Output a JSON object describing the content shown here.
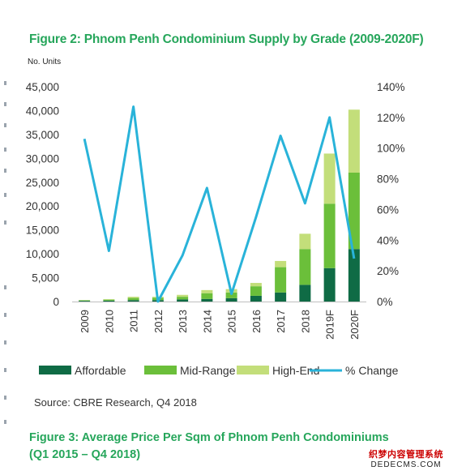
{
  "figure_title": "Figure 2: Phnom Penh Condominium Supply by Grade (2009-2020F)",
  "next_figure_title": "Figure 3: Average Price Per Sqm of Phnom Penh Condominiums (Q1 2015 – Q4 2018)",
  "source": "Source: CBRE Research, Q4 2018",
  "watermark": {
    "line1": "织梦内容管理系统",
    "line2": "DEDECMS.COM"
  },
  "colors": {
    "title": "#26a65b",
    "affordable": "#0f6b45",
    "mid_range": "#6bbf3a",
    "high_end": "#c3de7a",
    "pct_change": "#29b3d9"
  },
  "chart_data": {
    "type": "bar",
    "stacked": true,
    "title": "Figure 2: Phnom Penh Condominium Supply by Grade (2009-2020F)",
    "ylabel": "No. Units",
    "ylim": [
      0,
      45000
    ],
    "y_ticks": [
      0,
      5000,
      10000,
      15000,
      20000,
      25000,
      30000,
      35000,
      40000,
      45000
    ],
    "y_tick_labels": [
      "0",
      "5,000",
      "10,000",
      "15,000",
      "20,000",
      "25,000",
      "30,000",
      "35,000",
      "40,000",
      "45,000"
    ],
    "y2lim": [
      0,
      140
    ],
    "y2_ticks": [
      0,
      20,
      40,
      60,
      80,
      100,
      120,
      140
    ],
    "y2_tick_labels": [
      "0%",
      "20%",
      "40%",
      "60%",
      "80%",
      "100%",
      "120%",
      "140%"
    ],
    "categories": [
      "2009",
      "2010",
      "2011",
      "2012",
      "2013",
      "2014",
      "2015",
      "2016",
      "2017",
      "2018",
      "2019F",
      "2020F"
    ],
    "series": [
      {
        "name": "Affordable",
        "type": "bar",
        "axis": "left",
        "color": "#0f6b45",
        "values": [
          150,
          200,
          300,
          300,
          450,
          550,
          700,
          1200,
          1900,
          3500,
          7000,
          11000
        ]
      },
      {
        "name": "Mid-Range",
        "type": "bar",
        "axis": "left",
        "color": "#6bbf3a",
        "values": [
          100,
          200,
          450,
          500,
          550,
          1200,
          1200,
          2000,
          5300,
          7500,
          13500,
          16000
        ]
      },
      {
        "name": "High-End",
        "type": "bar",
        "axis": "left",
        "color": "#c3de7a",
        "values": [
          50,
          100,
          250,
          200,
          400,
          650,
          700,
          700,
          1300,
          3200,
          10500,
          13200
        ]
      },
      {
        "name": "% Change",
        "type": "line",
        "axis": "right",
        "color": "#29b3d9",
        "values": [
          106,
          33,
          127,
          0,
          30,
          74,
          5,
          55,
          108,
          64,
          120,
          28
        ]
      }
    ],
    "grid": false,
    "legend_position": "bottom"
  }
}
